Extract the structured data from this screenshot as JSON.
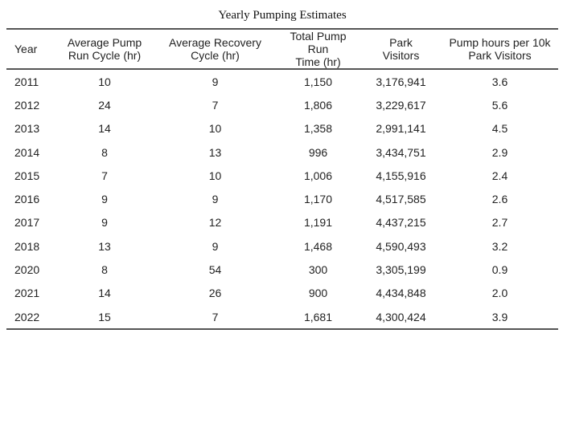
{
  "table": {
    "title": "Yearly Pumping Estimates",
    "columns": [
      {
        "label_line1": "Year",
        "label_line2": ""
      },
      {
        "label_line1": "Average Pump",
        "label_line2": "Run Cycle (hr)"
      },
      {
        "label_line1": "Average Recovery",
        "label_line2": "Cycle (hr)"
      },
      {
        "label_line1": "Total Pump Run",
        "label_line2": "Time (hr)"
      },
      {
        "label_line1": "Park",
        "label_line2": "Visitors"
      },
      {
        "label_line1": "Pump hours per 10k",
        "label_line2": "Park Visitors"
      }
    ],
    "rows": [
      [
        "2011",
        "10",
        "9",
        "1,150",
        "3,176,941",
        "3.6"
      ],
      [
        "2012",
        "24",
        "7",
        "1,806",
        "3,229,617",
        "5.6"
      ],
      [
        "2013",
        "14",
        "10",
        "1,358",
        "2,991,141",
        "4.5"
      ],
      [
        "2014",
        "8",
        "13",
        "996",
        "3,434,751",
        "2.9"
      ],
      [
        "2015",
        "7",
        "10",
        "1,006",
        "4,155,916",
        "2.4"
      ],
      [
        "2016",
        "9",
        "9",
        "1,170",
        "4,517,585",
        "2.6"
      ],
      [
        "2017",
        "9",
        "12",
        "1,191",
        "4,437,215",
        "2.7"
      ],
      [
        "2018",
        "13",
        "9",
        "1,468",
        "4,590,493",
        "3.2"
      ],
      [
        "2020",
        "8",
        "54",
        "300",
        "3,305,199",
        "0.9"
      ],
      [
        "2021",
        "14",
        "26",
        "900",
        "4,434,848",
        "2.0"
      ],
      [
        "2022",
        "15",
        "7",
        "1,681",
        "4,300,424",
        "3.9"
      ]
    ]
  }
}
